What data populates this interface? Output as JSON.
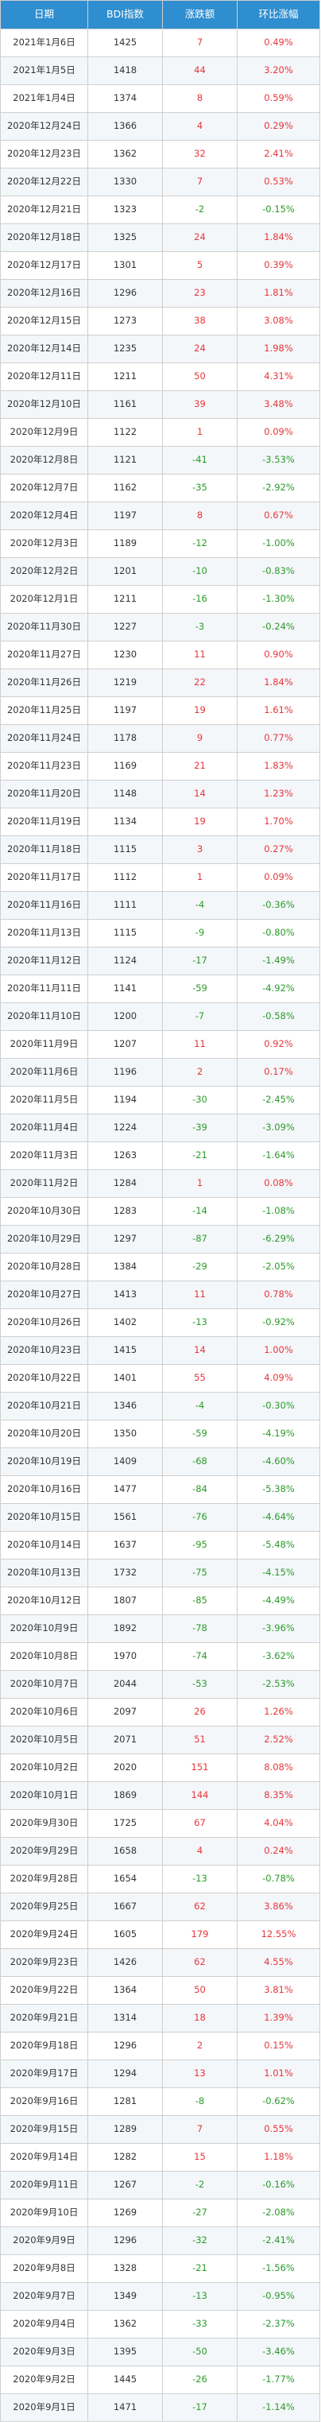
{
  "table": {
    "headers": [
      "日期",
      "BDI指数",
      "涨跌额",
      "环比涨幅"
    ],
    "colors": {
      "header_bg": "#2f8ecf",
      "up": "#e8353a",
      "down": "#2a9a2a"
    },
    "rows": [
      [
        "2021年1月6日",
        "1425",
        "7",
        "0.49%"
      ],
      [
        "2021年1月5日",
        "1418",
        "44",
        "3.20%"
      ],
      [
        "2021年1月4日",
        "1374",
        "8",
        "0.59%"
      ],
      [
        "2020年12月24日",
        "1366",
        "4",
        "0.29%"
      ],
      [
        "2020年12月23日",
        "1362",
        "32",
        "2.41%"
      ],
      [
        "2020年12月22日",
        "1330",
        "7",
        "0.53%"
      ],
      [
        "2020年12月21日",
        "1323",
        "-2",
        "-0.15%"
      ],
      [
        "2020年12月18日",
        "1325",
        "24",
        "1.84%"
      ],
      [
        "2020年12月17日",
        "1301",
        "5",
        "0.39%"
      ],
      [
        "2020年12月16日",
        "1296",
        "23",
        "1.81%"
      ],
      [
        "2020年12月15日",
        "1273",
        "38",
        "3.08%"
      ],
      [
        "2020年12月14日",
        "1235",
        "24",
        "1.98%"
      ],
      [
        "2020年12月11日",
        "1211",
        "50",
        "4.31%"
      ],
      [
        "2020年12月10日",
        "1161",
        "39",
        "3.48%"
      ],
      [
        "2020年12月9日",
        "1122",
        "1",
        "0.09%"
      ],
      [
        "2020年12月8日",
        "1121",
        "-41",
        "-3.53%"
      ],
      [
        "2020年12月7日",
        "1162",
        "-35",
        "-2.92%"
      ],
      [
        "2020年12月4日",
        "1197",
        "8",
        "0.67%"
      ],
      [
        "2020年12月3日",
        "1189",
        "-12",
        "-1.00%"
      ],
      [
        "2020年12月2日",
        "1201",
        "-10",
        "-0.83%"
      ],
      [
        "2020年12月1日",
        "1211",
        "-16",
        "-1.30%"
      ],
      [
        "2020年11月30日",
        "1227",
        "-3",
        "-0.24%"
      ],
      [
        "2020年11月27日",
        "1230",
        "11",
        "0.90%"
      ],
      [
        "2020年11月26日",
        "1219",
        "22",
        "1.84%"
      ],
      [
        "2020年11月25日",
        "1197",
        "19",
        "1.61%"
      ],
      [
        "2020年11月24日",
        "1178",
        "9",
        "0.77%"
      ],
      [
        "2020年11月23日",
        "1169",
        "21",
        "1.83%"
      ],
      [
        "2020年11月20日",
        "1148",
        "14",
        "1.23%"
      ],
      [
        "2020年11月19日",
        "1134",
        "19",
        "1.70%"
      ],
      [
        "2020年11月18日",
        "1115",
        "3",
        "0.27%"
      ],
      [
        "2020年11月17日",
        "1112",
        "1",
        "0.09%"
      ],
      [
        "2020年11月16日",
        "1111",
        "-4",
        "-0.36%"
      ],
      [
        "2020年11月13日",
        "1115",
        "-9",
        "-0.80%"
      ],
      [
        "2020年11月12日",
        "1124",
        "-17",
        "-1.49%"
      ],
      [
        "2020年11月11日",
        "1141",
        "-59",
        "-4.92%"
      ],
      [
        "2020年11月10日",
        "1200",
        "-7",
        "-0.58%"
      ],
      [
        "2020年11月9日",
        "1207",
        "11",
        "0.92%"
      ],
      [
        "2020年11月6日",
        "1196",
        "2",
        "0.17%"
      ],
      [
        "2020年11月5日",
        "1194",
        "-30",
        "-2.45%"
      ],
      [
        "2020年11月4日",
        "1224",
        "-39",
        "-3.09%"
      ],
      [
        "2020年11月3日",
        "1263",
        "-21",
        "-1.64%"
      ],
      [
        "2020年11月2日",
        "1284",
        "1",
        "0.08%"
      ],
      [
        "2020年10月30日",
        "1283",
        "-14",
        "-1.08%"
      ],
      [
        "2020年10月29日",
        "1297",
        "-87",
        "-6.29%"
      ],
      [
        "2020年10月28日",
        "1384",
        "-29",
        "-2.05%"
      ],
      [
        "2020年10月27日",
        "1413",
        "11",
        "0.78%"
      ],
      [
        "2020年10月26日",
        "1402",
        "-13",
        "-0.92%"
      ],
      [
        "2020年10月23日",
        "1415",
        "14",
        "1.00%"
      ],
      [
        "2020年10月22日",
        "1401",
        "55",
        "4.09%"
      ],
      [
        "2020年10月21日",
        "1346",
        "-4",
        "-0.30%"
      ],
      [
        "2020年10月20日",
        "1350",
        "-59",
        "-4.19%"
      ],
      [
        "2020年10月19日",
        "1409",
        "-68",
        "-4.60%"
      ],
      [
        "2020年10月16日",
        "1477",
        "-84",
        "-5.38%"
      ],
      [
        "2020年10月15日",
        "1561",
        "-76",
        "-4.64%"
      ],
      [
        "2020年10月14日",
        "1637",
        "-95",
        "-5.48%"
      ],
      [
        "2020年10月13日",
        "1732",
        "-75",
        "-4.15%"
      ],
      [
        "2020年10月12日",
        "1807",
        "-85",
        "-4.49%"
      ],
      [
        "2020年10月9日",
        "1892",
        "-78",
        "-3.96%"
      ],
      [
        "2020年10月8日",
        "1970",
        "-74",
        "-3.62%"
      ],
      [
        "2020年10月7日",
        "2044",
        "-53",
        "-2.53%"
      ],
      [
        "2020年10月6日",
        "2097",
        "26",
        "1.26%"
      ],
      [
        "2020年10月5日",
        "2071",
        "51",
        "2.52%"
      ],
      [
        "2020年10月2日",
        "2020",
        "151",
        "8.08%"
      ],
      [
        "2020年10月1日",
        "1869",
        "144",
        "8.35%"
      ],
      [
        "2020年9月30日",
        "1725",
        "67",
        "4.04%"
      ],
      [
        "2020年9月29日",
        "1658",
        "4",
        "0.24%"
      ],
      [
        "2020年9月28日",
        "1654",
        "-13",
        "-0.78%"
      ],
      [
        "2020年9月25日",
        "1667",
        "62",
        "3.86%"
      ],
      [
        "2020年9月24日",
        "1605",
        "179",
        "12.55%"
      ],
      [
        "2020年9月23日",
        "1426",
        "62",
        "4.55%"
      ],
      [
        "2020年9月22日",
        "1364",
        "50",
        "3.81%"
      ],
      [
        "2020年9月21日",
        "1314",
        "18",
        "1.39%"
      ],
      [
        "2020年9月18日",
        "1296",
        "2",
        "0.15%"
      ],
      [
        "2020年9月17日",
        "1294",
        "13",
        "1.01%"
      ],
      [
        "2020年9月16日",
        "1281",
        "-8",
        "-0.62%"
      ],
      [
        "2020年9月15日",
        "1289",
        "7",
        "0.55%"
      ],
      [
        "2020年9月14日",
        "1282",
        "15",
        "1.18%"
      ],
      [
        "2020年9月11日",
        "1267",
        "-2",
        "-0.16%"
      ],
      [
        "2020年9月10日",
        "1269",
        "-27",
        "-2.08%"
      ],
      [
        "2020年9月9日",
        "1296",
        "-32",
        "-2.41%"
      ],
      [
        "2020年9月8日",
        "1328",
        "-21",
        "-1.56%"
      ],
      [
        "2020年9月7日",
        "1349",
        "-13",
        "-0.95%"
      ],
      [
        "2020年9月4日",
        "1362",
        "-33",
        "-2.37%"
      ],
      [
        "2020年9月3日",
        "1395",
        "-50",
        "-3.46%"
      ],
      [
        "2020年9月2日",
        "1445",
        "-26",
        "-1.77%"
      ],
      [
        "2020年9月1日",
        "1471",
        "-17",
        "-1.14%"
      ]
    ]
  }
}
